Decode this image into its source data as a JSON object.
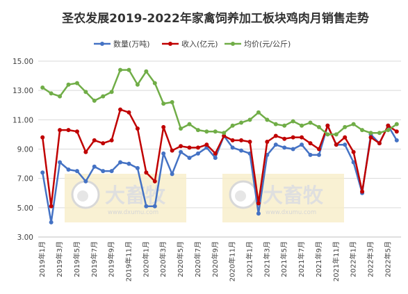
{
  "chart_data": {
    "type": "line",
    "title": "圣农发展2019-2022年家禽饲养加工板块鸡肉月销售走势",
    "ylim": [
      3.0,
      15.0
    ],
    "yticks": [
      "3.00",
      "5.00",
      "7.00",
      "9.00",
      "11.00",
      "13.00",
      "15.00"
    ],
    "grid": true,
    "legend_position": "top",
    "x": [
      "2019-01",
      "2019-02",
      "2019-03",
      "2019-04",
      "2019-05",
      "2019-06",
      "2019-07",
      "2019-08",
      "2019-09",
      "2019-10",
      "2019-11",
      "2019-12",
      "2020-01",
      "2020-02",
      "2020-03",
      "2020-04",
      "2020-05",
      "2020-06",
      "2020-07",
      "2020-08",
      "2020-09",
      "2020-10",
      "2020-11",
      "2020-12",
      "2021-01",
      "2021-02",
      "2021-03",
      "2021-04",
      "2021-05",
      "2021-06",
      "2021-07",
      "2021-08",
      "2021-09",
      "2021-10",
      "2021-11",
      "2021-12",
      "2022-01",
      "2022-02",
      "2022-03",
      "2022-04",
      "2022-05",
      "2022-06"
    ],
    "xtick_labels": [
      "2019年1月",
      "2019年3月",
      "2019年5月",
      "2019年7月",
      "2019年9月",
      "2019年11月",
      "2020年1月",
      "2020年3月",
      "2020年5月",
      "2020年7月",
      "2020年9月",
      "2020年11月",
      "2021年1月",
      "2021年3月",
      "2021年5月",
      "2021年7月",
      "2021年9月",
      "2021年11月",
      "2022年1月",
      "2022年3月",
      "2022年5月"
    ],
    "series": [
      {
        "name": "数量(万吨)",
        "color": "#4472c4",
        "values": [
          7.4,
          4.0,
          8.1,
          7.6,
          7.5,
          6.8,
          7.8,
          7.5,
          7.5,
          8.1,
          8.0,
          7.7,
          5.1,
          5.1,
          8.7,
          7.3,
          8.8,
          8.4,
          8.7,
          9.1,
          8.4,
          9.9,
          9.1,
          8.9,
          8.7,
          4.6,
          8.6,
          9.3,
          9.1,
          9.0,
          9.3,
          8.6,
          8.6,
          10.6,
          9.3,
          9.3,
          8.1,
          6.0,
          10.0,
          9.4,
          10.6,
          9.6
        ]
      },
      {
        "name": "收入(亿元)",
        "color": "#c00000",
        "values": [
          9.8,
          5.1,
          10.3,
          10.3,
          10.2,
          8.8,
          9.6,
          9.4,
          9.6,
          11.7,
          11.5,
          10.4,
          7.4,
          6.8,
          10.5,
          8.9,
          9.2,
          9.1,
          9.1,
          9.3,
          8.7,
          9.9,
          9.6,
          9.6,
          9.5,
          5.3,
          9.5,
          9.9,
          9.7,
          9.8,
          9.8,
          9.4,
          9.0,
          10.6,
          9.3,
          9.8,
          8.8,
          6.1,
          9.8,
          9.4,
          10.6,
          10.2
        ]
      },
      {
        "name": "均价(元/公斤)",
        "color": "#70ad47",
        "values": [
          13.2,
          12.8,
          12.6,
          13.4,
          13.5,
          12.9,
          12.3,
          12.6,
          12.9,
          14.4,
          14.4,
          13.4,
          14.3,
          13.5,
          12.1,
          12.2,
          10.4,
          10.7,
          10.3,
          10.2,
          10.2,
          10.1,
          10.6,
          10.8,
          11.0,
          11.5,
          11.0,
          10.7,
          10.6,
          10.9,
          10.6,
          10.8,
          10.5,
          10.0,
          10.0,
          10.5,
          10.7,
          10.3,
          10.1,
          10.1,
          10.3,
          10.7
        ]
      }
    ]
  },
  "watermark": {
    "brand": "大畜牧",
    "url": "www.dxumu.com"
  }
}
